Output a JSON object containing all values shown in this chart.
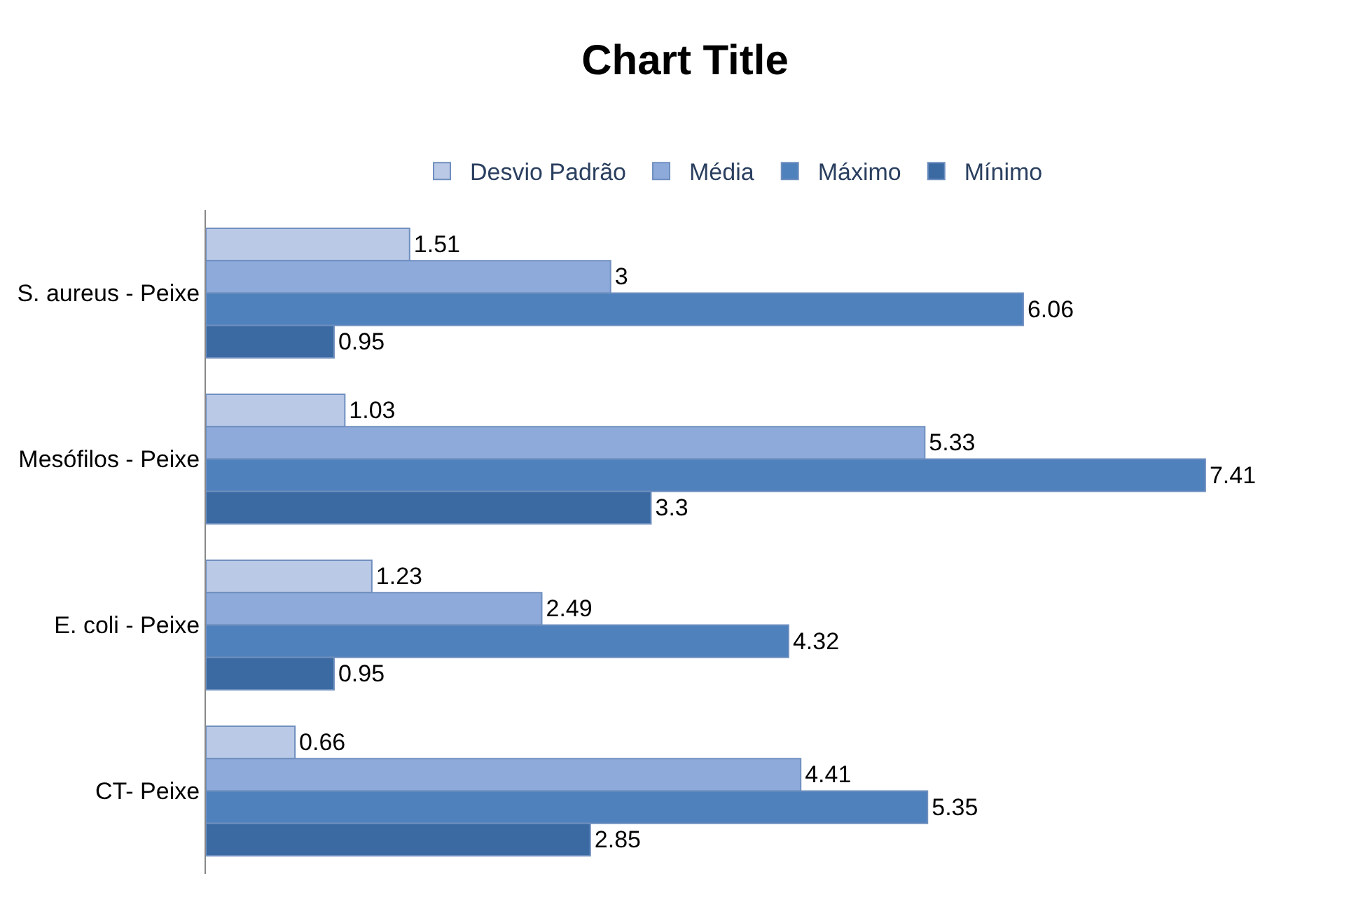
{
  "chart_data": {
    "type": "bar",
    "orientation": "horizontal",
    "title": "Chart Title",
    "categories": [
      "S. aureus - Peixe",
      "Mesófilos - Peixe",
      "E. coli - Peixe",
      "CT- Peixe"
    ],
    "series": [
      {
        "name": "Desvio Padrão",
        "color": "#b9c9e6",
        "values": [
          1.51,
          1.03,
          1.23,
          0.66
        ]
      },
      {
        "name": "Média",
        "color": "#8eaadb",
        "values": [
          3,
          5.33,
          2.49,
          4.41
        ]
      },
      {
        "name": "Máximo",
        "color": "#4f81bd",
        "values": [
          6.06,
          7.41,
          4.32,
          5.35
        ]
      },
      {
        "name": "Mínimo",
        "color": "#3b6aa3",
        "values": [
          0.95,
          3.3,
          0.95,
          2.85
        ]
      }
    ],
    "data_labels": true,
    "legend": "top"
  }
}
